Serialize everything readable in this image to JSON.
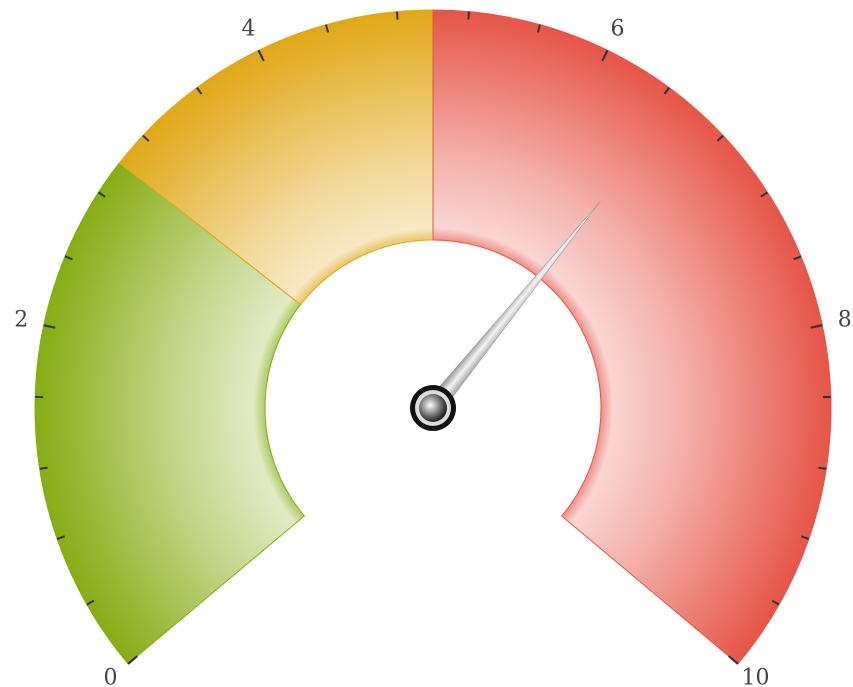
{
  "chart_data": {
    "type": "gauge",
    "lim": [
      0,
      10
    ],
    "value": 6.5,
    "ticks": [
      0,
      2,
      4,
      6,
      8,
      10
    ],
    "minor_tick_step": 0.4,
    "bands": [
      {
        "from": 0,
        "to": 3,
        "color": "#86ad14"
      },
      {
        "from": 3,
        "to": 5,
        "color": "#e0a818"
      },
      {
        "from": 5,
        "to": 10,
        "color": "#e65548"
      }
    ]
  }
}
